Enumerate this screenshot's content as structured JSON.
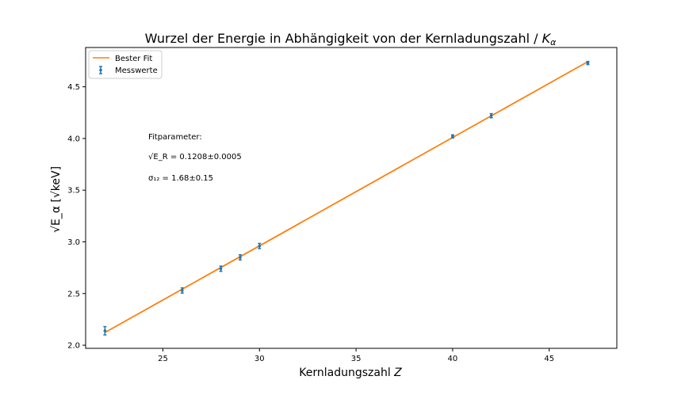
{
  "chart_data": {
    "type": "scatter",
    "title_main": "Wurzel der Energie in Abhängigkeit von der Kernladungszahl / ",
    "title_sym": "K",
    "title_sub": "α",
    "xlabel_main": "Kernladungszahl ",
    "xlabel_sym": "Z",
    "ylabel": "√E_α  [√keV]",
    "xlim": [
      21,
      48.5
    ],
    "ylim": [
      1.97,
      4.88
    ],
    "x_ticks": [
      25,
      30,
      35,
      40,
      45
    ],
    "y_ticks": [
      2.0,
      2.5,
      3.0,
      3.5,
      4.0,
      4.5
    ],
    "x_tick_labels": [
      "25",
      "30",
      "35",
      "40",
      "45"
    ],
    "y_tick_labels": [
      "2.0",
      "2.5",
      "3.0",
      "3.5",
      "4.0",
      "4.5"
    ],
    "series": [
      {
        "name": "Messwerte",
        "kind": "errorbar",
        "color": "#1f77b4",
        "x": [
          22,
          26,
          28,
          29,
          30,
          40,
          42,
          47
        ],
        "y": [
          2.14,
          2.53,
          2.74,
          2.85,
          2.96,
          4.02,
          4.22,
          4.73
        ],
        "yerr": [
          0.04,
          0.025,
          0.025,
          0.025,
          0.025,
          0.015,
          0.02,
          0.015
        ]
      },
      {
        "name": "Bester Fit",
        "kind": "line",
        "color": "#ff7f0e",
        "x": [
          22,
          47
        ],
        "y": [
          2.123,
          4.743
        ]
      }
    ],
    "legend_position": "upper-left",
    "grid": false,
    "annotation": {
      "line1": "Fitparameter:",
      "line2": "√E_R = 0.1208±0.0005",
      "line3": "σ₁₂ = 1.68±0.15"
    }
  }
}
